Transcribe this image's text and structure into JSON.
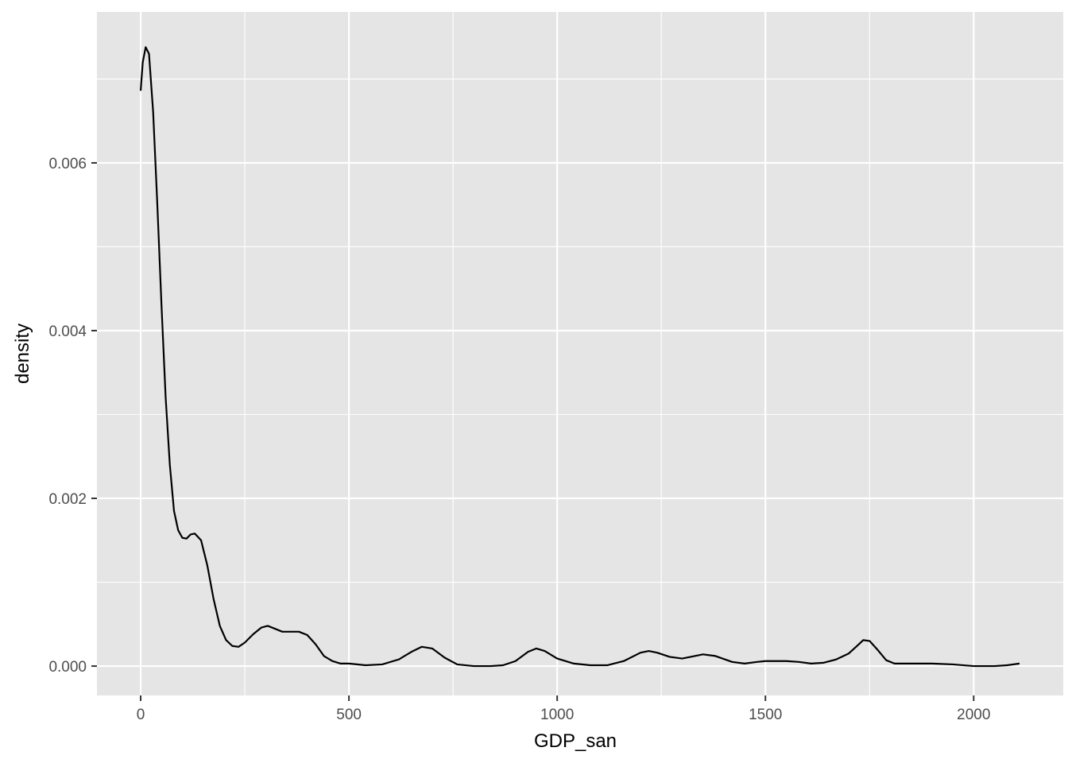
{
  "chart_data": {
    "type": "line",
    "title": "",
    "xlabel": "GDP_san",
    "ylabel": "density",
    "xlim": [
      -105,
      2215
    ],
    "ylim": [
      -0.00035,
      0.0078
    ],
    "x_ticks": [
      0,
      500,
      1000,
      1500,
      2000
    ],
    "x_tick_labels": [
      "0",
      "500",
      "1000",
      "1500",
      "2000"
    ],
    "x_minor_ticks": [
      250,
      750,
      1250,
      1750
    ],
    "y_ticks": [
      0,
      0.002,
      0.004,
      0.006
    ],
    "y_tick_labels": [
      "0.000",
      "0.002",
      "0.004",
      "0.006"
    ],
    "y_minor_ticks": [
      0.001,
      0.003,
      0.005,
      0.007
    ],
    "grid": true,
    "legend": "none",
    "colors": {
      "panel": "#e5e5e5",
      "grid": "#ffffff",
      "line": "#000000",
      "tick": "#333333"
    },
    "series": [
      {
        "x": [
          0,
          5,
          12,
          20,
          30,
          40,
          50,
          60,
          70,
          80,
          90,
          100,
          110,
          120,
          130,
          145,
          160,
          175,
          190,
          205,
          220,
          235,
          250,
          270,
          290,
          305,
          320,
          340,
          360,
          380,
          400,
          420,
          440,
          460,
          480,
          500,
          540,
          580,
          620,
          650,
          675,
          700,
          730,
          760,
          800,
          840,
          870,
          900,
          930,
          950,
          970,
          1000,
          1040,
          1080,
          1120,
          1160,
          1200,
          1220,
          1240,
          1270,
          1300,
          1330,
          1350,
          1380,
          1420,
          1450,
          1480,
          1500,
          1530,
          1550,
          1580,
          1610,
          1640,
          1670,
          1700,
          1720,
          1735,
          1750,
          1770,
          1790,
          1810,
          1850,
          1900,
          1950,
          2000,
          2050,
          2080,
          2110
        ],
        "y": [
          0.00686,
          0.0072,
          0.00738,
          0.0073,
          0.0066,
          0.0055,
          0.0043,
          0.0032,
          0.0024,
          0.00185,
          0.00162,
          0.00153,
          0.00152,
          0.00157,
          0.00158,
          0.0015,
          0.0012,
          0.0008,
          0.00048,
          0.00031,
          0.00024,
          0.00023,
          0.00028,
          0.00038,
          0.00046,
          0.00048,
          0.00045,
          0.00041,
          0.00041,
          0.00041,
          0.00037,
          0.00026,
          0.00012,
          6e-05,
          3e-05,
          3e-05,
          1e-05,
          2e-05,
          8e-05,
          0.00017,
          0.00023,
          0.00021,
          0.0001,
          2e-05,
          0.0,
          0.0,
          1e-05,
          6e-05,
          0.00017,
          0.00021,
          0.00018,
          9e-05,
          3e-05,
          1e-05,
          1e-05,
          6e-05,
          0.00016,
          0.00018,
          0.00016,
          0.00011,
          9e-05,
          0.00012,
          0.00014,
          0.00012,
          5e-05,
          3e-05,
          5e-05,
          6e-05,
          6e-05,
          6e-05,
          5e-05,
          3e-05,
          4e-05,
          8e-05,
          0.00015,
          0.00024,
          0.00031,
          0.0003,
          0.00019,
          7e-05,
          3e-05,
          3e-05,
          3e-05,
          2e-05,
          0.0,
          0.0,
          1e-05,
          3e-05
        ]
      }
    ]
  }
}
